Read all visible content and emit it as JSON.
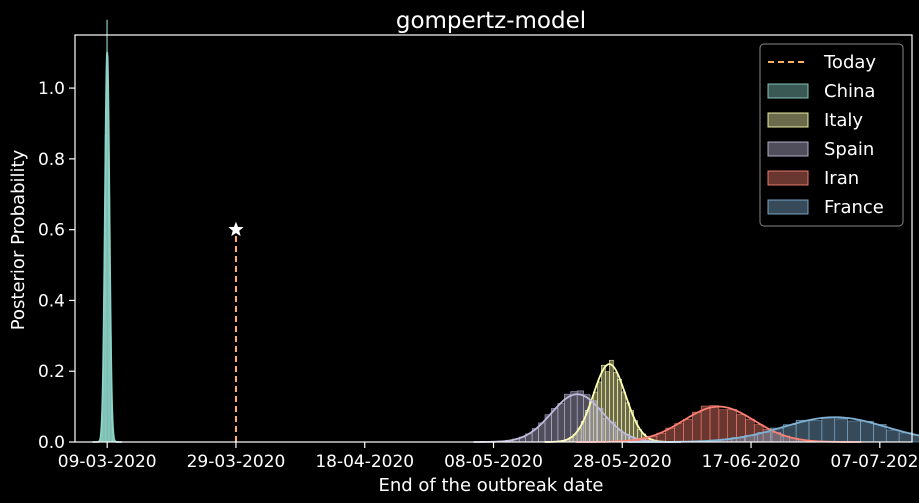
{
  "chart_data": {
    "type": "histogram",
    "title": "gompertz-model",
    "xlabel": "End of the outbreak date",
    "ylabel": "Posterior Probability",
    "ylim": [
      0,
      1.15
    ],
    "y_ticks": [
      "0.0",
      "0.2",
      "0.4",
      "0.6",
      "0.8",
      "1.0"
    ],
    "x_ticks": [
      "09-03-2020",
      "29-03-2020",
      "18-04-2020",
      "08-05-2020",
      "28-05-2020",
      "17-06-2020",
      "07-07-2020"
    ],
    "x_range": [
      "2020-03-04",
      "2020-07-12"
    ],
    "grid": false,
    "legend_position": "top-right",
    "today": {
      "label": "Today",
      "date": "2020-03-29",
      "marker_y": 0.6,
      "color": "#ffb366"
    },
    "series": [
      {
        "name": "China",
        "color": "#8dd3c7",
        "peak_date": "2020-03-09",
        "peak": 1.1,
        "sd_days": 0.35
      },
      {
        "name": "Italy",
        "color": "#ffffb3",
        "peak_date": "2020-05-26",
        "peak": 0.22,
        "sd_days": 2.5
      },
      {
        "name": "Spain",
        "color": "#bebada",
        "peak_date": "2020-05-21",
        "peak": 0.135,
        "sd_days": 4
      },
      {
        "name": "Iran",
        "color": "#fb8072",
        "peak_date": "2020-06-12",
        "peak": 0.1,
        "sd_days": 5.5
      },
      {
        "name": "France",
        "color": "#80b1d3",
        "peak_date": "2020-06-30",
        "peak": 0.07,
        "sd_days": 8
      }
    ]
  }
}
